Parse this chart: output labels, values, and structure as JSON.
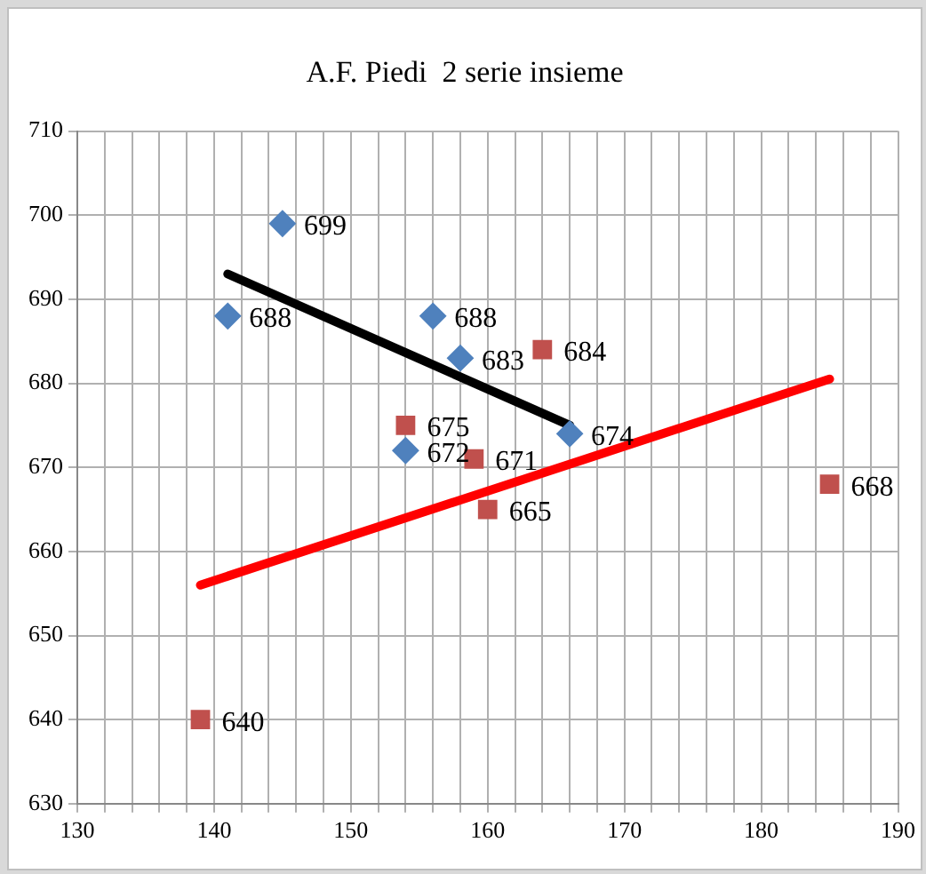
{
  "chart_data": {
    "type": "scatter",
    "title": "A.F. Piedi  2 serie insieme",
    "series": [
      {
        "color": "#4f81bd",
        "marker": "diamond",
        "x": [
          141,
          145,
          156,
          158,
          154,
          166
        ],
        "values": [
          688,
          699,
          688,
          683,
          672,
          674
        ],
        "value_labels": [
          "688",
          "699",
          "688",
          "683",
          "672",
          "674"
        ]
      },
      {
        "color": "#c0504d",
        "marker": "square",
        "x": [
          164,
          154,
          159,
          160,
          185,
          139
        ],
        "values": [
          684,
          675,
          671,
          665,
          668,
          640
        ],
        "value_labels": [
          "684",
          "675",
          "671",
          "665",
          "668",
          "640"
        ]
      },
      {
        "type": "line",
        "color": "#000000",
        "marker": "none",
        "x": [
          141,
          166
        ],
        "values": [
          693,
          675
        ]
      },
      {
        "type": "line",
        "color": "#ff0000",
        "marker": "none",
        "x": [
          139,
          185
        ],
        "values": [
          656,
          680.5
        ]
      }
    ],
    "xlim": [
      130,
      190
    ],
    "xticks": [
      130,
      {
        "value": 132,
        "label": null
      },
      {
        "value": 134,
        "label": null
      },
      {
        "value": 136,
        "label": null
      },
      {
        "value": 138,
        "label": null
      },
      140,
      {
        "value": 142,
        "label": null
      },
      {
        "value": 144,
        "label": null
      },
      {
        "value": 146,
        "label": null
      },
      {
        "value": 148,
        "label": null
      },
      150,
      {
        "value": 152,
        "label": null
      },
      {
        "value": 154,
        "label": null
      },
      {
        "value": 156,
        "label": null
      },
      {
        "value": 158,
        "label": null
      },
      160,
      {
        "value": 162,
        "label": null
      },
      {
        "value": 164,
        "label": null
      },
      {
        "value": 166,
        "label": null
      },
      {
        "value": 168,
        "label": null
      },
      170,
      {
        "value": 172,
        "label": null
      },
      {
        "value": 174,
        "label": null
      },
      {
        "value": 176,
        "label": null
      },
      {
        "value": 178,
        "label": null
      },
      180,
      {
        "value": 182,
        "label": null
      },
      {
        "value": 184,
        "label": null
      },
      {
        "value": 186,
        "label": null
      },
      {
        "value": 188,
        "label": null
      },
      190
    ],
    "ylim": [
      630,
      710
    ],
    "yticks": [
      630,
      640,
      650,
      660,
      670,
      680,
      690,
      700,
      710
    ],
    "grid": true,
    "legend": false
  }
}
